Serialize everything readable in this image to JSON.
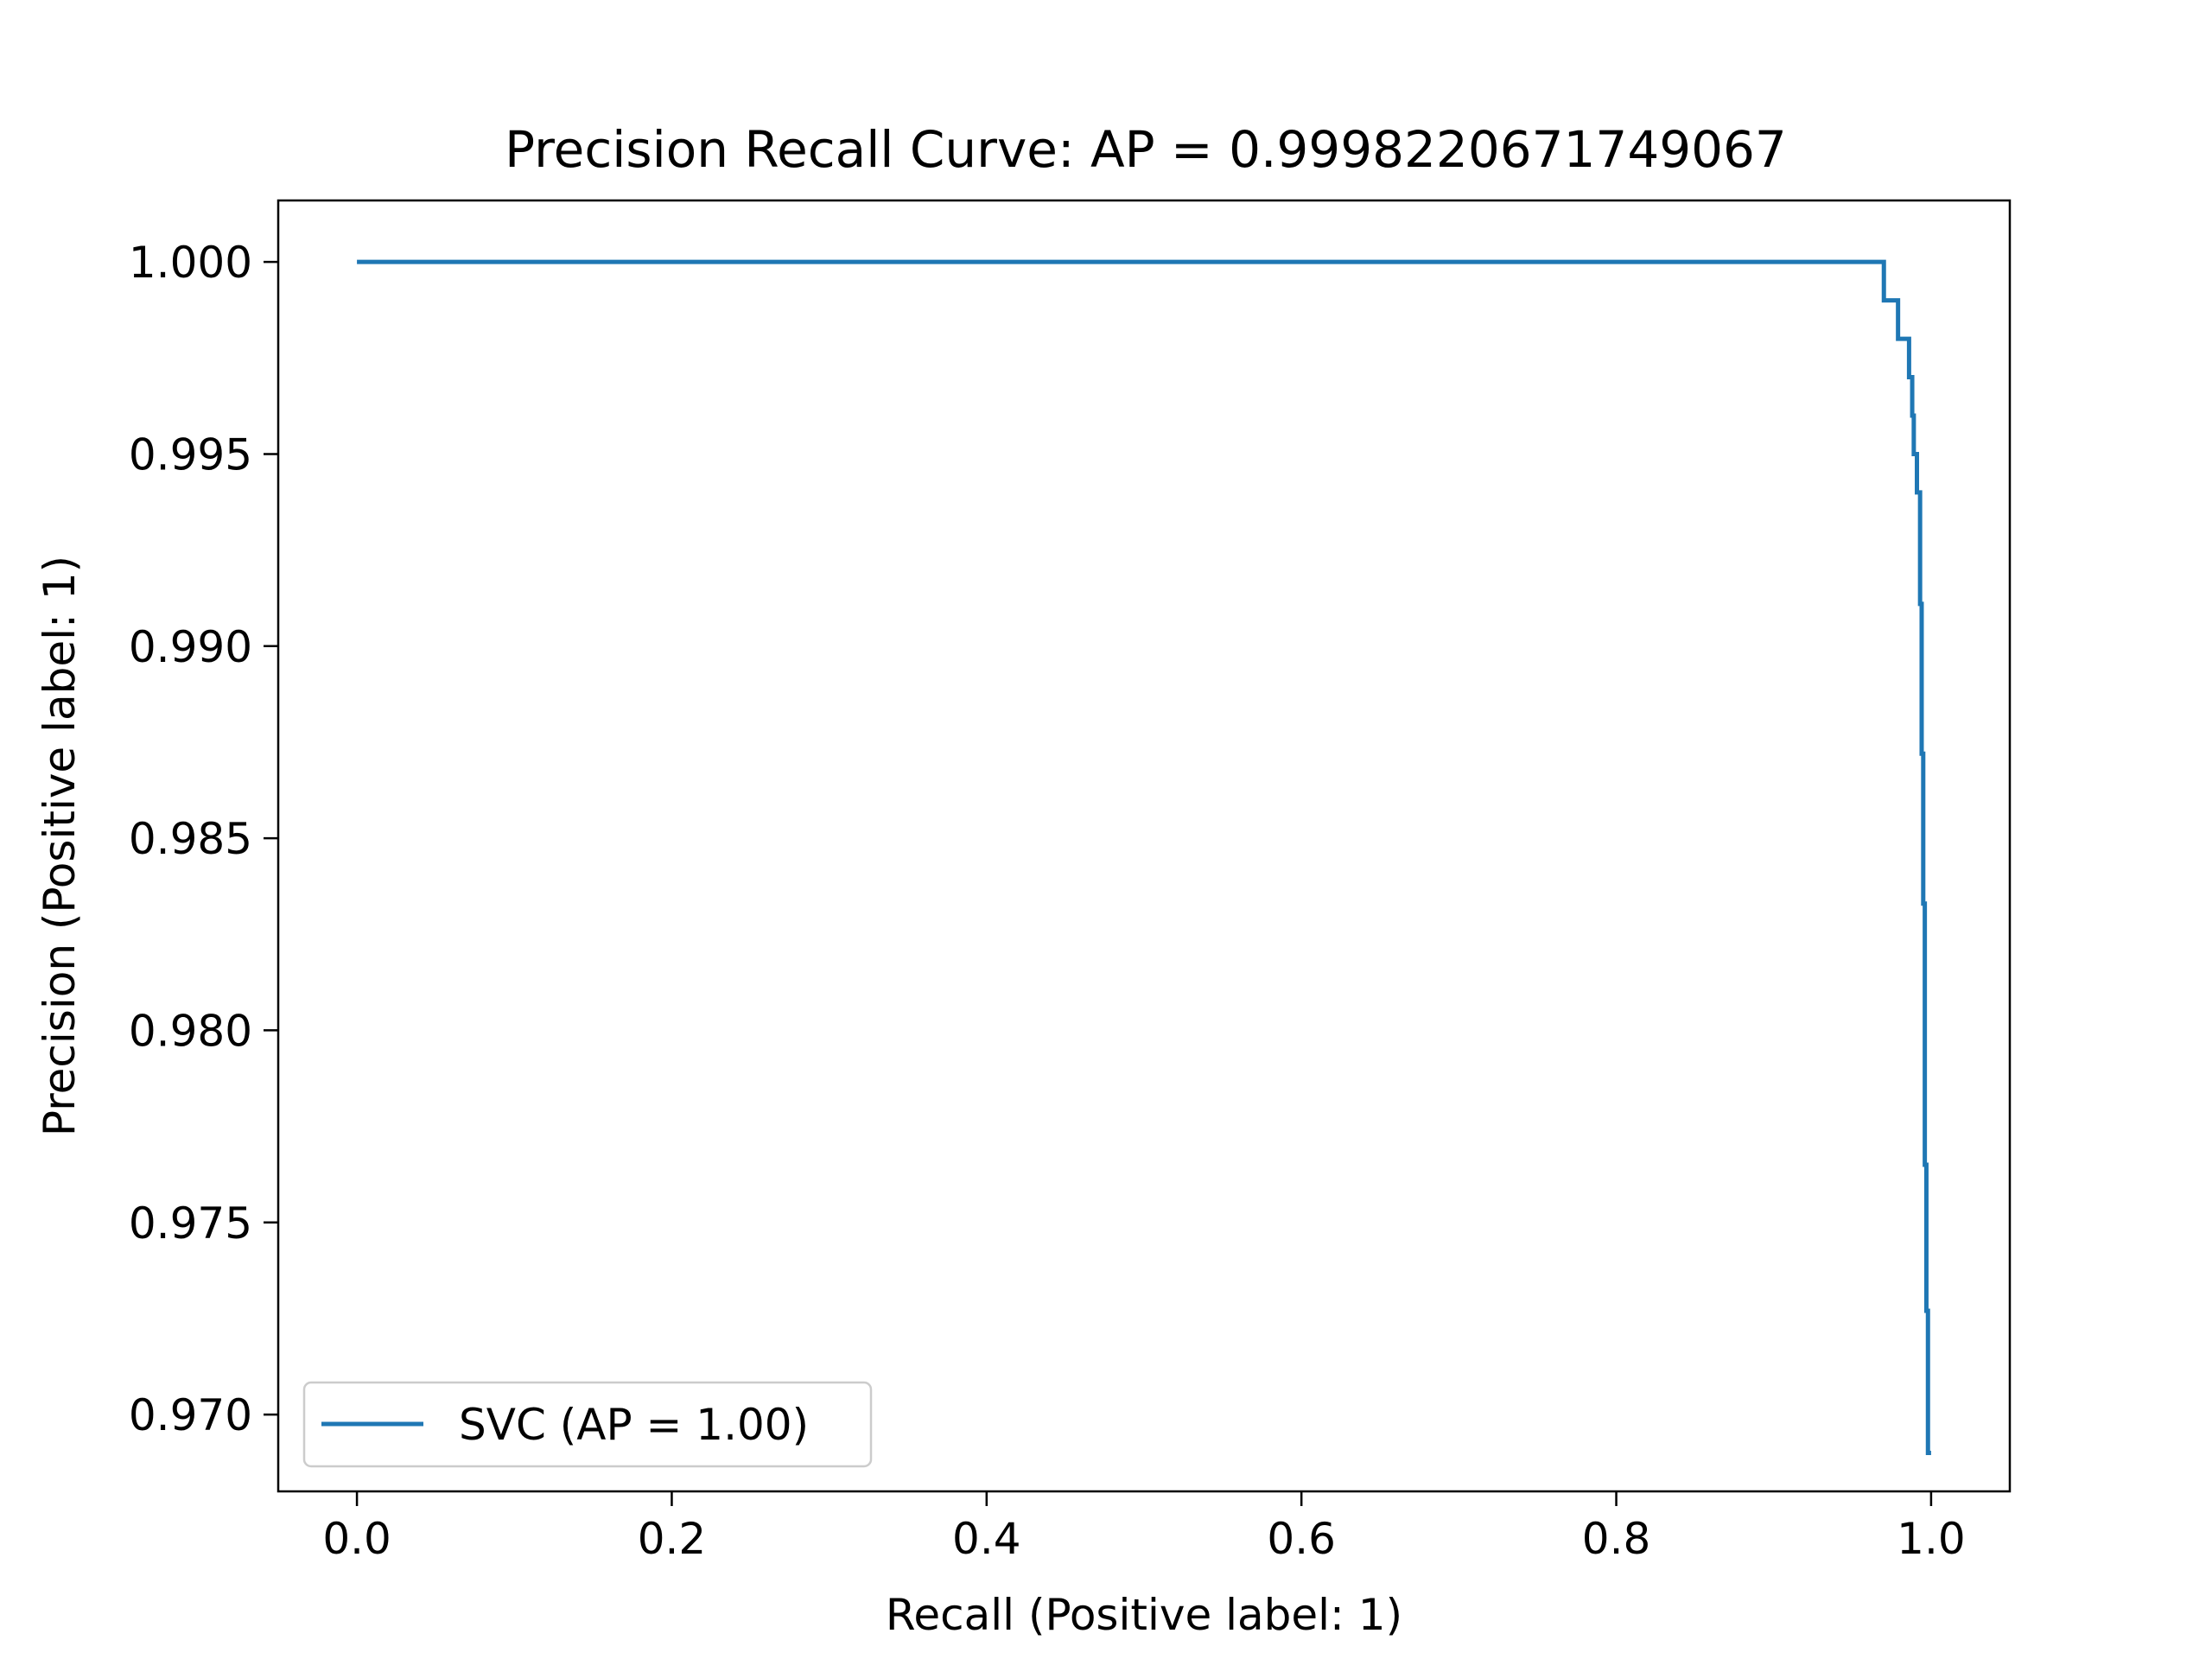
{
  "chart_data": {
    "type": "line",
    "title": "Precision Recall Curve: AP = 0.9998220671749067",
    "xlabel": "Recall (Positive label: 1)",
    "ylabel": "Precision (Positive label: 1)",
    "xlim": [
      -0.05,
      1.05
    ],
    "ylim": [
      0.968,
      1.0016
    ],
    "xticks": [
      0.0,
      0.2,
      0.4,
      0.6,
      0.8,
      1.0
    ],
    "xtick_labels": [
      "0.0",
      "0.2",
      "0.4",
      "0.6",
      "0.8",
      "1.0"
    ],
    "yticks": [
      0.97,
      0.975,
      0.98,
      0.985,
      0.99,
      0.995,
      1.0
    ],
    "ytick_labels": [
      "0.970",
      "0.975",
      "0.980",
      "0.985",
      "0.990",
      "0.995",
      "1.000"
    ],
    "grid": false,
    "legend_position": "lower-left",
    "series": [
      {
        "name": "SVC (AP = 1.00)",
        "color": "#1f77b4",
        "step": "post",
        "points": [
          [
            0.0,
            1.0
          ],
          [
            0.97,
            1.0
          ],
          [
            0.97,
            0.999
          ],
          [
            0.979,
            0.999
          ],
          [
            0.979,
            0.998
          ],
          [
            0.986,
            0.998
          ],
          [
            0.986,
            0.997
          ],
          [
            0.988,
            0.997
          ],
          [
            0.988,
            0.996
          ],
          [
            0.989,
            0.996
          ],
          [
            0.989,
            0.995
          ],
          [
            0.991,
            0.995
          ],
          [
            0.991,
            0.994
          ],
          [
            0.993,
            0.994
          ],
          [
            0.993,
            0.9911
          ],
          [
            0.994,
            0.9911
          ],
          [
            0.994,
            0.9872
          ],
          [
            0.995,
            0.9872
          ],
          [
            0.995,
            0.9833
          ],
          [
            0.996,
            0.9833
          ],
          [
            0.996,
            0.9765
          ],
          [
            0.997,
            0.9765
          ],
          [
            0.997,
            0.9727
          ],
          [
            0.998,
            0.9727
          ],
          [
            0.998,
            0.969
          ],
          [
            1.0,
            0.969
          ]
        ]
      }
    ]
  }
}
